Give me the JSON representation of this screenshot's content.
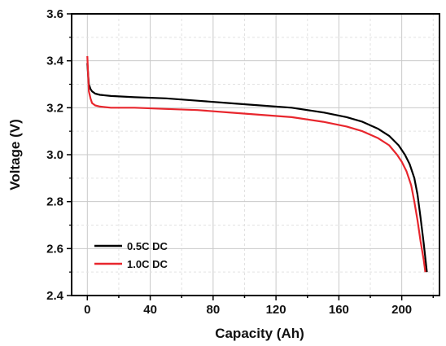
{
  "chart_data": {
    "type": "line",
    "title": "",
    "xlabel": "Capacity (Ah)",
    "ylabel": "Voltage (V)",
    "xlim": [
      -10,
      224
    ],
    "ylim": [
      2.4,
      3.6
    ],
    "xticks": [
      0,
      40,
      80,
      120,
      160,
      200
    ],
    "yticks": [
      2.4,
      2.6,
      2.8,
      3.0,
      3.2,
      3.4,
      3.6
    ],
    "grid": true,
    "legend_position": "bottom-left",
    "series": [
      {
        "name": "0.5C DC",
        "color": "#000000",
        "x": [
          0,
          0.5,
          1,
          2,
          3,
          5,
          8,
          15,
          30,
          50,
          70,
          90,
          110,
          130,
          150,
          165,
          175,
          185,
          192,
          198,
          202,
          205,
          208,
          210,
          212,
          214,
          216
        ],
        "y": [
          3.39,
          3.34,
          3.3,
          3.28,
          3.27,
          3.26,
          3.255,
          3.25,
          3.245,
          3.24,
          3.23,
          3.22,
          3.21,
          3.2,
          3.18,
          3.16,
          3.14,
          3.11,
          3.08,
          3.04,
          3.0,
          2.96,
          2.9,
          2.83,
          2.73,
          2.62,
          2.5
        ]
      },
      {
        "name": "1.0C DC",
        "color": "#e8262d",
        "x": [
          0,
          0.5,
          1,
          2,
          3,
          5,
          8,
          15,
          30,
          50,
          70,
          90,
          110,
          130,
          150,
          165,
          175,
          185,
          192,
          197,
          200,
          203,
          206,
          208,
          210,
          212,
          214,
          215
        ],
        "y": [
          3.42,
          3.34,
          3.27,
          3.24,
          3.22,
          3.21,
          3.205,
          3.2,
          3.2,
          3.195,
          3.19,
          3.18,
          3.17,
          3.16,
          3.14,
          3.12,
          3.1,
          3.07,
          3.04,
          3.0,
          2.97,
          2.93,
          2.87,
          2.8,
          2.72,
          2.63,
          2.55,
          2.5
        ]
      }
    ]
  }
}
